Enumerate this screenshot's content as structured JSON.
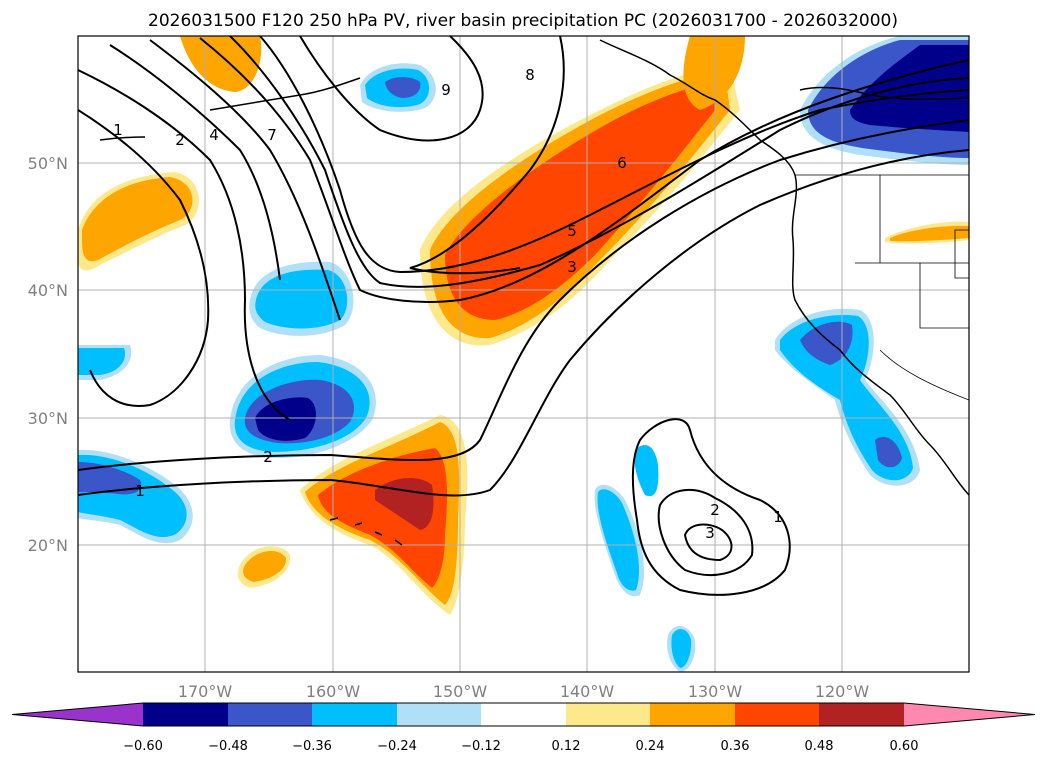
{
  "title": "2026031500 F120 250 hPa PV, river basin precipitation PC (2026031700 - 2026032000)",
  "lat_labels": [
    "50°N",
    "40°N",
    "30°N",
    "20°N"
  ],
  "lon_labels": [
    "170°W",
    "160°W",
    "150°W",
    "140°W",
    "130°W",
    "120°W"
  ],
  "colorbar": {
    "ticks": [
      "−0.60",
      "−0.48",
      "−0.36",
      "−0.24",
      "−0.12",
      "0.12",
      "0.24",
      "0.36",
      "0.48",
      "0.60"
    ],
    "colors": {
      "under": "#9933cc",
      "b1": "#00008b",
      "b2": "#3a56c8",
      "b3": "#00bfff",
      "b4": "#afe0f8",
      "b5": "#ffffff",
      "b6": "#fde98b",
      "b7": "#ffa500",
      "b8": "#ff4500",
      "b9": "#b22222",
      "over": "#ff88b0"
    }
  },
  "chart_data": {
    "type": "map",
    "title": "2026031500 F120 250 hPa PV, river basin precipitation PC (2026031700 - 2026032000)",
    "lon_range": [
      -180,
      -110
    ],
    "lat_range": [
      10,
      60
    ],
    "pv_contour_labels": [
      "1",
      "2",
      "4",
      "7",
      "9",
      "8",
      "6",
      "5",
      "3",
      "2",
      "1",
      "1",
      "2",
      "3"
    ],
    "color_levels": [
      -0.6,
      -0.48,
      -0.36,
      -0.24,
      -0.12,
      0.12,
      0.24,
      0.36,
      0.48,
      0.6
    ],
    "features": {
      "positive_regions": [
        "NE Pacific band 42-55N 150-130W",
        "Hawaii region 20-26N 160-148W",
        "170-180W 42-47N",
        "Pacific NW coast"
      ],
      "negative_regions": [
        "30N 165W",
        "40N 160W",
        "Gulf of Alaska 55N",
        "NW Canada 55N 120W",
        "California coast 25-37N",
        "25N 180W",
        "20N 138W"
      ]
    }
  }
}
